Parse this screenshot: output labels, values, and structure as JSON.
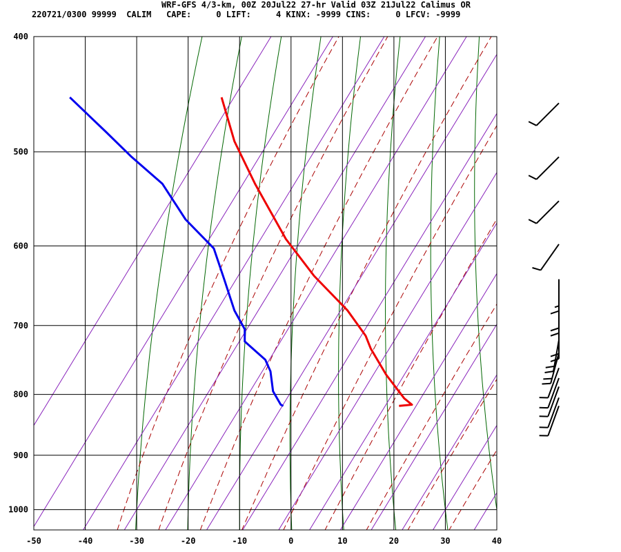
{
  "header": {
    "title": "WRF-GFS 4/3-km, 00Z 20Jul22 27-hr Valid 03Z 21Jul22 Calimus OR",
    "indices": "220721/0300 99999  CALIM   CAPE:     0 LIFT:     4 KINX: -9999 CINS:     0 LFCV: -9999"
  },
  "chart_data": {
    "type": "skew-t",
    "title": "WRF-GFS 4/3-km, 00Z 20Jul22 27-hr Valid 03Z 21Jul22 Calimus OR",
    "x_ticks": [
      -50,
      -40,
      -30,
      -20,
      -10,
      0,
      10,
      20,
      30,
      40
    ],
    "p_ticks": [
      400,
      500,
      600,
      700,
      800,
      900,
      1000
    ],
    "xlim": [
      -50,
      40
    ],
    "plim": [
      1040,
      400
    ],
    "colors": {
      "temperature": "#ee0000",
      "dewpoint": "#0000ee",
      "dry_adiabat": "#006600",
      "moist_adiabat": "#aa0000",
      "mixing_ratio": "#8822bb",
      "grid": "#000000"
    },
    "series": [
      {
        "name": "temperature",
        "points": [
          [
            -13.5,
            450
          ],
          [
            -11,
            490
          ],
          [
            -7,
            532
          ],
          [
            -1,
            592
          ],
          [
            4.5,
            636
          ],
          [
            11,
            680
          ],
          [
            14.5,
            714
          ],
          [
            15.5,
            732
          ],
          [
            18.5,
            770
          ],
          [
            22,
            806
          ],
          [
            23.5,
            816
          ],
          [
            21,
            818
          ]
        ]
      },
      {
        "name": "dewpoint",
        "points": [
          [
            -43,
            450
          ],
          [
            -36,
            481
          ],
          [
            -31,
            505
          ],
          [
            -25,
            532
          ],
          [
            -20.5,
            570
          ],
          [
            -15,
            603
          ],
          [
            -13,
            640
          ],
          [
            -11,
            680
          ],
          [
            -9,
            705
          ],
          [
            -9,
            722
          ],
          [
            -5,
            748
          ],
          [
            -4,
            765
          ],
          [
            -3.5,
            795
          ],
          [
            -2,
            816
          ],
          [
            -1.5,
            818
          ]
        ]
      }
    ],
    "wind_barbs": [
      {
        "p": 455,
        "dir": 225,
        "kt": 10
      },
      {
        "p": 505,
        "dir": 225,
        "kt": 10
      },
      {
        "p": 550,
        "dir": 225,
        "kt": 10
      },
      {
        "p": 598,
        "dir": 215,
        "kt": 10
      },
      {
        "p": 640,
        "dir": 180,
        "kt": 15
      },
      {
        "p": 668,
        "dir": 180,
        "kt": 20
      },
      {
        "p": 702,
        "dir": 180,
        "kt": 20
      },
      {
        "p": 720,
        "dir": 190,
        "kt": 20
      },
      {
        "p": 738,
        "dir": 195,
        "kt": 20
      },
      {
        "p": 760,
        "dir": 200,
        "kt": 10
      },
      {
        "p": 775,
        "dir": 200,
        "kt": 10
      },
      {
        "p": 788,
        "dir": 200,
        "kt": 10
      },
      {
        "p": 805,
        "dir": 200,
        "kt": 10
      },
      {
        "p": 818,
        "dir": 200,
        "kt": 10
      }
    ]
  }
}
